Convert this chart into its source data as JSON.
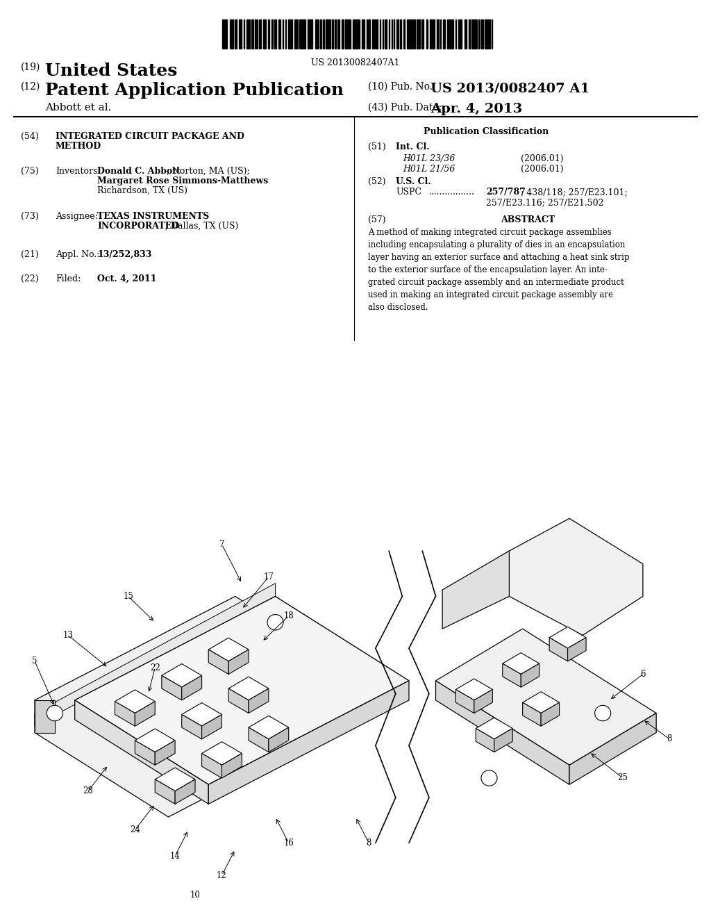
{
  "background_color": "#ffffff",
  "barcode_text": "US 20130082407A1",
  "header_line1_num": "(19)",
  "header_line1_text": "United States",
  "header_line2_num": "(12)",
  "header_line2_text": "Patent Application Publication",
  "header_pub_num_label": "(10) Pub. No.:",
  "header_pub_num_value": "US 2013/0082407 A1",
  "header_author": "Abbott et al.",
  "header_date_label": "(43) Pub. Date:",
  "header_date_value": "Apr. 4, 2013",
  "left_col": [
    {
      "num": "(54)",
      "label": "INTEGRATED CIRCUIT PACKAGE AND\nMETHOD"
    },
    {
      "num": "(75)",
      "label": "Inventors:",
      "value": "Donald C. Abbott, Norton, MA (US);\nMargaret Rose Simmons-Matthews,\nRichardson, TX (US)"
    },
    {
      "num": "(73)",
      "label": "Assignee:",
      "value": "TEXAS INSTRUMENTS\nINCORPORATED, Dallas, TX (US)"
    },
    {
      "num": "(21)",
      "label": "Appl. No.:",
      "value": "13/252,833"
    },
    {
      "num": "(22)",
      "label": "Filed:",
      "value": "Oct. 4, 2011"
    }
  ],
  "right_col_title": "Publication Classification",
  "right_col": [
    {
      "num": "(51)",
      "label": "Int. Cl.",
      "entries": [
        {
          "code": "H01L 23/36",
          "date": "(2006.01)"
        },
        {
          "code": "H01L 21/56",
          "date": "(2006.01)"
        }
      ]
    },
    {
      "num": "(52)",
      "label": "U.S. Cl.",
      "entries": [
        {
          "code": "USPC",
          "value": "257/787; 438/118; 257/E23.101;\n257/E23.116; 257/E21.502"
        }
      ]
    },
    {
      "num": "(57)",
      "label": "ABSTRACT",
      "text": "A method of making integrated circuit package assemblies including encapsulating a plurality of dies in an encapsulation layer having an exterior surface and attaching a heat sink strip to the exterior surface of the encapsulation layer. An integrated circuit package assembly and an intermediate product used in making an integrated circuit package assembly are also disclosed."
    }
  ],
  "diagram_labels": [
    "5",
    "13",
    "15",
    "22",
    "7",
    "17",
    "18",
    "6",
    "8",
    "25",
    "28",
    "24",
    "14",
    "12",
    "10",
    "16",
    "8"
  ]
}
